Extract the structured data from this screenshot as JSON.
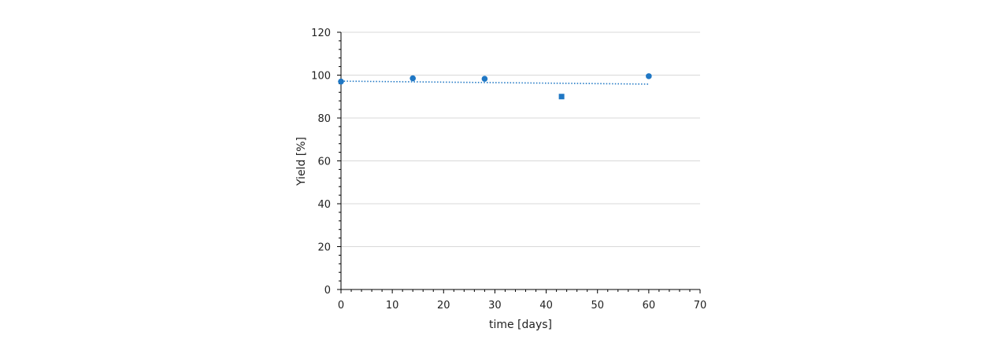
{
  "chart_data": {
    "type": "scatter",
    "xlabel": "time [days]",
    "ylabel": "Yield [%]",
    "xlim": [
      0,
      70
    ],
    "ylim": [
      0,
      120
    ],
    "x_ticks": [
      0,
      10,
      20,
      30,
      40,
      50,
      60,
      70
    ],
    "y_ticks": [
      0,
      20,
      40,
      60,
      80,
      100,
      120
    ],
    "grid": "horizontal",
    "legend": "none",
    "series": [
      {
        "marker": "circle",
        "color": "#1f77c4",
        "points": [
          {
            "x": 0,
            "y": 97
          },
          {
            "x": 14,
            "y": 98.5
          },
          {
            "x": 28,
            "y": 98.3
          },
          {
            "x": 60,
            "y": 99.5
          }
        ]
      },
      {
        "marker": "square",
        "color": "#1f77c4",
        "points": [
          {
            "x": 43,
            "y": 90
          }
        ]
      }
    ],
    "trendline": {
      "style": "dotted",
      "color": "#1f77c4",
      "points": [
        {
          "x": 0,
          "y": 97.2
        },
        {
          "x": 60,
          "y": 95.8
        }
      ]
    }
  }
}
